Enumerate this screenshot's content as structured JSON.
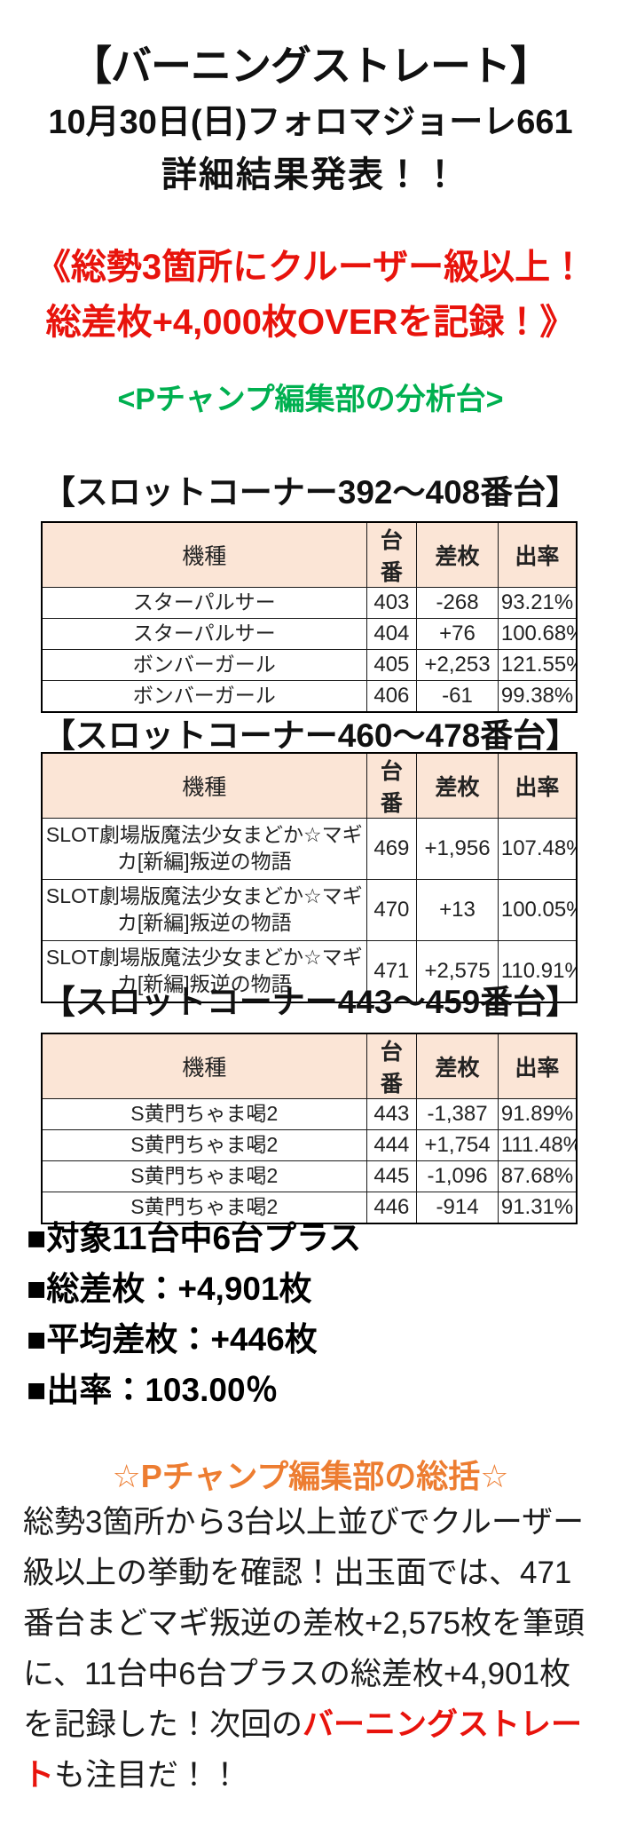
{
  "colors": {
    "red": "#e8130c",
    "green": "#00b050",
    "orange": "#ed7d31",
    "table_header_bg": "#fbe5d6"
  },
  "header": {
    "title": "【バーニングストレート】",
    "subtitle": "10月30日(日)フォロマジョーレ661",
    "subtitle2": "詳細結果発表！！",
    "highlight_line1": "《総勢3箇所にクルーザー級以上！",
    "highlight_line2": "総差枚+4,000枚OVERを記録！》",
    "analysis_label": "<Pチャンプ編集部の分析台>"
  },
  "sections": [
    {
      "heading": "【スロットコーナー392〜408番台】",
      "table": {
        "headers": [
          "機種",
          "台番",
          "差枚",
          "出率"
        ],
        "rows": [
          [
            "スターパルサー",
            "403",
            "-268",
            "93.21%"
          ],
          [
            "スターパルサー",
            "404",
            "+76",
            "100.68%"
          ],
          [
            "ボンバーガール",
            "405",
            "+2,253",
            "121.55%"
          ],
          [
            "ボンバーガール",
            "406",
            "-61",
            "99.38%"
          ]
        ]
      }
    },
    {
      "heading": "【スロットコーナー460〜478番台】",
      "table": {
        "headers": [
          "機種",
          "台番",
          "差枚",
          "出率"
        ],
        "rows": [
          [
            "SLOT劇場版魔法少女まどか☆マギカ[新編]叛逆の物語",
            "469",
            "+1,956",
            "107.48%"
          ],
          [
            "SLOT劇場版魔法少女まどか☆マギカ[新編]叛逆の物語",
            "470",
            "+13",
            "100.05%"
          ],
          [
            "SLOT劇場版魔法少女まどか☆マギカ[新編]叛逆の物語",
            "471",
            "+2,575",
            "110.91%"
          ]
        ]
      }
    },
    {
      "heading": "【スロットコーナー443〜459番台】",
      "table": {
        "headers": [
          "機種",
          "台番",
          "差枚",
          "出率"
        ],
        "rows": [
          [
            "S黄門ちゃま喝2",
            "443",
            "-1,387",
            "91.89%"
          ],
          [
            "S黄門ちゃま喝2",
            "444",
            "+1,754",
            "111.48%"
          ],
          [
            "S黄門ちゃま喝2",
            "445",
            "-1,096",
            "87.68%"
          ],
          [
            "S黄門ちゃま喝2",
            "446",
            "-914",
            "91.31%"
          ]
        ]
      }
    }
  ],
  "summary": {
    "lines": [
      "■対象11台中6台プラス",
      "■総差枚：+4,901枚",
      "■平均差枚：+446枚",
      "■出率：103.00％"
    ]
  },
  "conclusion": {
    "heading": "☆Pチャンプ編集部の総括☆",
    "body_before": "総勢3箇所から3台以上並びでクルーザー級以上の挙動を確認！出玉面では、471番台まどマギ叛逆の差枚+2,575枚を筆頭に、11台中6台プラスの総差枚+4,901枚を記録した！次回の",
    "body_red": "バーニングストレート",
    "body_after": "も注目だ！！"
  }
}
